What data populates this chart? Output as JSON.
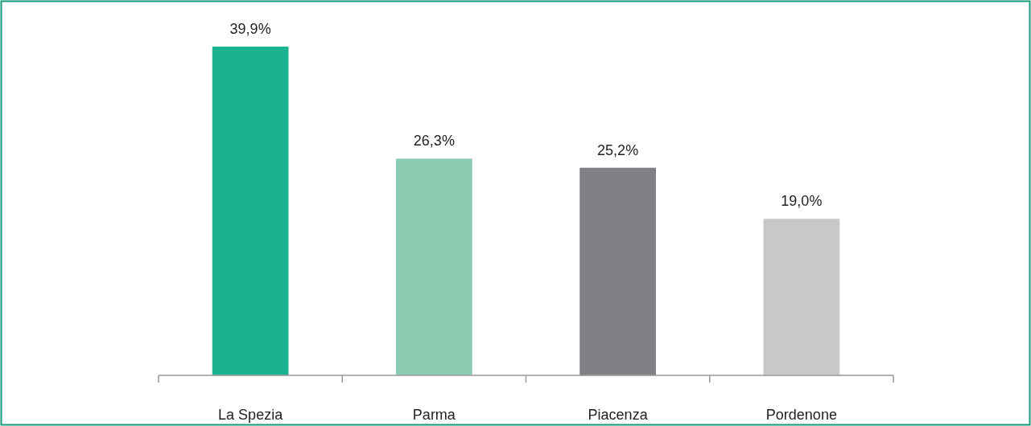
{
  "chart_data": {
    "type": "bar",
    "categories": [
      "La Spezia",
      "Parma",
      "Piacenza",
      "Pordenone"
    ],
    "values": [
      39.9,
      26.3,
      25.2,
      19.0
    ],
    "colors": [
      "#1bb28f",
      "#8acbb2",
      "#808184",
      "#c8c8ca"
    ],
    "value_labels": [
      "39,9%",
      "26,3%",
      "25,2%",
      "19,0%"
    ]
  }
}
